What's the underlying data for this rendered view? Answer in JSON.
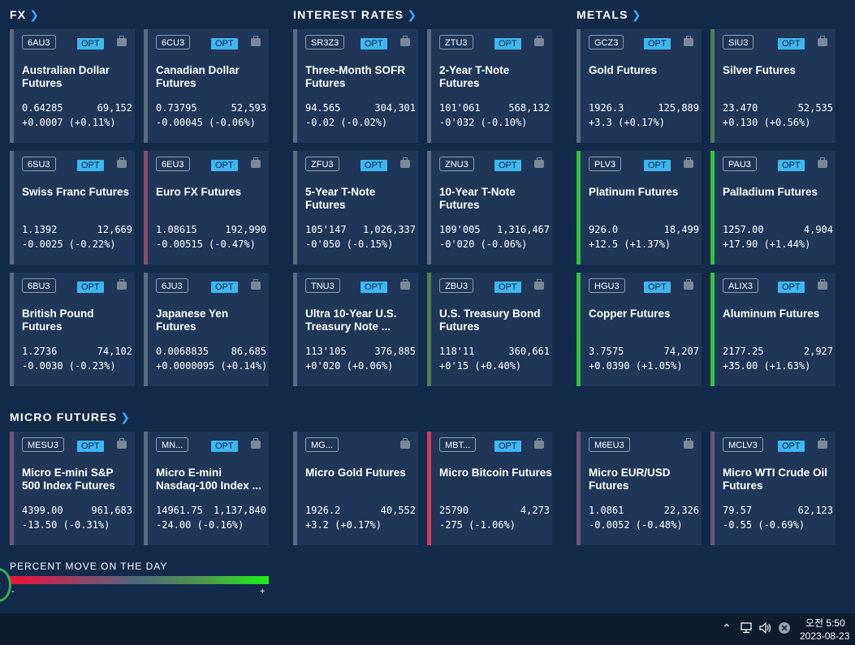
{
  "sections": {
    "fx": "FX",
    "interest_rates": "INTEREST RATES",
    "metals": "METALS",
    "micro": "MICRO FUTURES"
  },
  "colors": {
    "neutral": "#5c6b7e",
    "slight_down": "#6f5672",
    "down": "#8a4a6a",
    "slight_up": "#4e7d52",
    "up": "#2fc43a",
    "opt_badge": "#3fb6f0"
  },
  "cards": [
    {
      "symbol": "6AU3",
      "opt": "OPT",
      "name": [
        "Australian Dollar",
        "Futures"
      ],
      "price": "0.64285",
      "volume": "69,152",
      "change": "+0.0007 (+0.11%)"
    },
    {
      "symbol": "6CU3",
      "opt": "OPT",
      "name": [
        "Canadian Dollar",
        "Futures"
      ],
      "price": "0.73795",
      "volume": "52,593",
      "change": "-0.00045 (-0.06%)"
    },
    {
      "symbol": "SR3Z3",
      "opt": "OPT",
      "name": [
        "Three-Month SOFR",
        "Futures"
      ],
      "price": "94.565",
      "volume": "304,301",
      "change": "-0.02 (-0.02%)"
    },
    {
      "symbol": "ZTU3",
      "opt": "OPT",
      "name": [
        "2-Year T-Note",
        "Futures"
      ],
      "price": "101'061",
      "volume": "568,132",
      "change": "-0'032 (-0.10%)"
    },
    {
      "symbol": "GCZ3",
      "opt": "OPT",
      "name": [
        "Gold Futures",
        ""
      ],
      "price": "1926.3",
      "volume": "125,889",
      "change": "+3.3 (+0.17%)"
    },
    {
      "symbol": "SIU3",
      "opt": "OPT",
      "name": [
        "Silver Futures",
        ""
      ],
      "price": "23.470",
      "volume": "52,535",
      "change": "+0.130 (+0.56%)"
    },
    {
      "symbol": "6SU3",
      "opt": "OPT",
      "name": [
        "Swiss Franc Futures",
        ""
      ],
      "price": "1.1392",
      "volume": "12,669",
      "change": "-0.0025 (-0.22%)"
    },
    {
      "symbol": "6EU3",
      "opt": "OPT",
      "name": [
        "Euro FX Futures",
        ""
      ],
      "price": "1.08615",
      "volume": "192,990",
      "change": "-0.00515 (-0.47%)"
    },
    {
      "symbol": "ZFU3",
      "opt": "OPT",
      "name": [
        "5-Year T-Note",
        "Futures"
      ],
      "price": "105'147",
      "volume": "1,026,337",
      "change": "-0'050 (-0.15%)"
    },
    {
      "symbol": "ZNU3",
      "opt": "OPT",
      "name": [
        "10-Year T-Note",
        "Futures"
      ],
      "price": "109'005",
      "volume": "1,316,467",
      "change": "-0'020 (-0.06%)"
    },
    {
      "symbol": "PLV3",
      "opt": "OPT",
      "name": [
        "Platinum Futures",
        ""
      ],
      "price": "926.0",
      "volume": "18,499",
      "change": "+12.5 (+1.37%)"
    },
    {
      "symbol": "PAU3",
      "opt": "OPT",
      "name": [
        "Palladium Futures",
        ""
      ],
      "price": "1257.00",
      "volume": "4,904",
      "change": "+17.90 (+1.44%)"
    },
    {
      "symbol": "6BU3",
      "opt": "OPT",
      "name": [
        "British Pound",
        "Futures"
      ],
      "price": "1.2736",
      "volume": "74,102",
      "change": "-0.0030 (-0.23%)"
    },
    {
      "symbol": "6JU3",
      "opt": "OPT",
      "name": [
        "Japanese Yen",
        "Futures"
      ],
      "price": "0.0068835",
      "volume": "86,685",
      "change": "+0.0000095 (+0.14%)"
    },
    {
      "symbol": "TNU3",
      "opt": "OPT",
      "name": [
        "Ultra 10-Year U.S.",
        "Treasury Note ..."
      ],
      "price": "113'105",
      "volume": "376,885",
      "change": "+0'020 (+0.06%)"
    },
    {
      "symbol": "ZBU3",
      "opt": "OPT",
      "name": [
        "U.S. Treasury Bond",
        "Futures"
      ],
      "price": "118'11",
      "volume": "360,661",
      "change": "+0'15 (+0.40%)"
    },
    {
      "symbol": "HGU3",
      "opt": "OPT",
      "name": [
        "Copper Futures",
        ""
      ],
      "price": "3.7575",
      "volume": "74,207",
      "change": "+0.0390 (+1.05%)"
    },
    {
      "symbol": "ALIX3",
      "opt": "OPT",
      "name": [
        "Aluminum Futures",
        ""
      ],
      "price": "2177.25",
      "volume": "2,927",
      "change": "+35.00 (+1.63%)"
    },
    {
      "symbol": "MESU3",
      "opt": "OPT",
      "name": [
        "Micro E-mini S&P",
        "500 Index Futures"
      ],
      "price": "4399.00",
      "volume": "961,683",
      "change": "-13.50 (-0.31%)"
    },
    {
      "symbol": "MN...",
      "opt": "OPT",
      "name": [
        "Micro E-mini",
        "Nasdaq-100 Index ..."
      ],
      "price": "14961.75",
      "volume": "1,137,840",
      "change": "-24.00 (-0.16%)"
    },
    {
      "symbol": "MG...",
      "opt": "",
      "name": [
        "Micro Gold Futures",
        ""
      ],
      "price": "1926.2",
      "volume": "40,552",
      "change": "+3.2 (+0.17%)"
    },
    {
      "symbol": "MBT...",
      "opt": "OPT",
      "name": [
        "Micro Bitcoin Futures",
        ""
      ],
      "price": "25790",
      "volume": "4,273",
      "change": "-275 (-1.06%)"
    },
    {
      "symbol": "M6EU3",
      "opt": "",
      "name": [
        "Micro EUR/USD",
        "Futures"
      ],
      "price": "1.0861",
      "volume": "22,326",
      "change": "-0.0052 (-0.48%)"
    },
    {
      "symbol": "MCLV3",
      "opt": "OPT",
      "name": [
        "Micro WTI Crude Oil",
        "Futures"
      ],
      "price": "79.57",
      "volume": "62,123",
      "change": "-0.55 (-0.69%)"
    }
  ],
  "legend": {
    "title": "PERCENT MOVE ON THE DAY",
    "minus": "-",
    "plus": "+"
  },
  "taskbar": {
    "time": "오전 5:50",
    "date": "2023-08-23"
  }
}
